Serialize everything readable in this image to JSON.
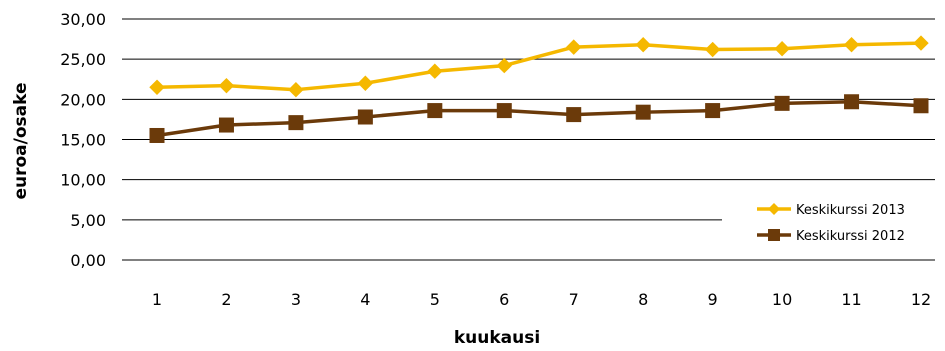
{
  "chart_data": {
    "type": "line",
    "xlabel": "kuukausi",
    "ylabel": "euroa/osake",
    "ylim": [
      0,
      30
    ],
    "yticks": [
      "0,00",
      "5,00",
      "10,00",
      "15,00",
      "20,00",
      "25,00",
      "30,00"
    ],
    "categories": [
      "1",
      "2",
      "3",
      "4",
      "5",
      "6",
      "7",
      "8",
      "9",
      "10",
      "11",
      "12"
    ],
    "grid": true,
    "legend_position": "bottom-right",
    "series": [
      {
        "name": "Keskikurssi 2013",
        "color": "#F5B800",
        "marker": "diamond",
        "values": [
          21.5,
          21.7,
          21.2,
          22.0,
          23.5,
          24.2,
          26.5,
          26.8,
          26.2,
          26.3,
          26.8,
          27.0
        ]
      },
      {
        "name": "Keskikurssi 2012",
        "color": "#6B3A0A",
        "marker": "square",
        "values": [
          15.5,
          16.8,
          17.1,
          17.8,
          18.6,
          18.6,
          18.1,
          18.4,
          18.6,
          19.5,
          19.7,
          19.2
        ]
      }
    ]
  }
}
